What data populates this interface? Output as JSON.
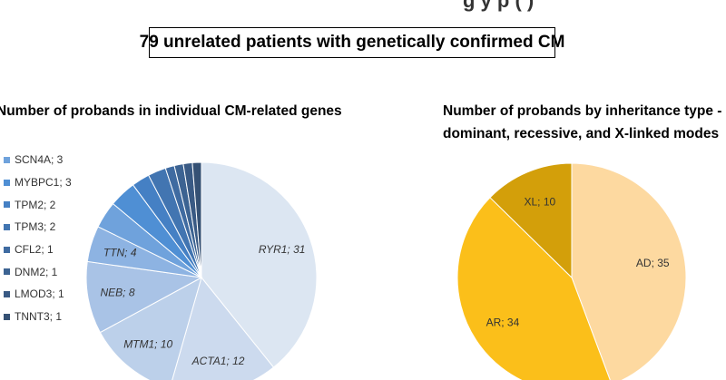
{
  "header": {
    "top_fragment": "g         y p       ( )",
    "banner": "79 unrelated patients with genetically confirmed CM"
  },
  "chart_data": [
    {
      "type": "pie",
      "title": "Number of probands in individual CM-related genes",
      "slices": [
        {
          "label": "RYR1",
          "value": 31,
          "color": "#dce6f2",
          "text": "RYR1; 31"
        },
        {
          "label": "ACTA1",
          "value": 12,
          "color": "#ccdaee",
          "text": "ACTA1; 12"
        },
        {
          "label": "MTM1",
          "value": 10,
          "color": "#bcd0ea",
          "text": "MTM1; 10"
        },
        {
          "label": "NEB",
          "value": 8,
          "color": "#a9c3e6",
          "text": "NEB; 8"
        },
        {
          "label": "TTN",
          "value": 4,
          "color": "#8db3e2",
          "text": "TTN; 4"
        },
        {
          "label": "SCN4A",
          "value": 3,
          "color": "#6fa2dc",
          "text": "SCN4A; 3"
        },
        {
          "label": "MYBPC1",
          "value": 3,
          "color": "#4f8fd4",
          "text": "MYBPC1; 3"
        },
        {
          "label": "TPM2",
          "value": 2,
          "color": "#4580c4",
          "text": "TPM2; 2"
        },
        {
          "label": "TPM3",
          "value": 2,
          "color": "#4275b1",
          "text": "TPM3; 2"
        },
        {
          "label": "CFL2",
          "value": 1,
          "color": "#3f6ba1",
          "text": "CFL2; 1"
        },
        {
          "label": "DNM2",
          "value": 1,
          "color": "#3c6392",
          "text": "DNM2; 1"
        },
        {
          "label": "LMOD3",
          "value": 1,
          "color": "#395a84",
          "text": "LMOD3; 1"
        },
        {
          "label": "TNNT3",
          "value": 1,
          "color": "#355174",
          "text": "TNNT3; 1"
        }
      ],
      "legend": [
        "SCN4A; 3",
        "MYBPC1; 3",
        "TPM2; 2",
        "TPM3; 2",
        "CFL2; 1",
        "DNM2; 1",
        "LMOD3; 1",
        "TNNT3; 1"
      ],
      "legend_colors": [
        "#6fa2dc",
        "#4f8fd4",
        "#4580c4",
        "#4275b1",
        "#3f6ba1",
        "#3c6392",
        "#395a84",
        "#355174"
      ],
      "legend_position": "left",
      "labeled_slices": [
        "RYR1; 31",
        "ACTA1; 12",
        "MTM1; 10",
        "NEB; 8",
        "TTN; 4"
      ]
    },
    {
      "type": "pie",
      "title": "Number of probands by inheritance type - dominant, recessive, and X-linked modes",
      "title_lines": [
        "Number of probands by inheritance type -",
        "dominant, recessive, and X-linked modes"
      ],
      "slices": [
        {
          "label": "AD",
          "value": 35,
          "color": "#fdd9a0",
          "text": "AD; 35"
        },
        {
          "label": "AR",
          "value": 34,
          "color": "#fbbf1a",
          "text": "AR; 34"
        },
        {
          "label": "XL",
          "value": 10,
          "color": "#d39f0a",
          "text": "XL; 10"
        }
      ]
    }
  ]
}
